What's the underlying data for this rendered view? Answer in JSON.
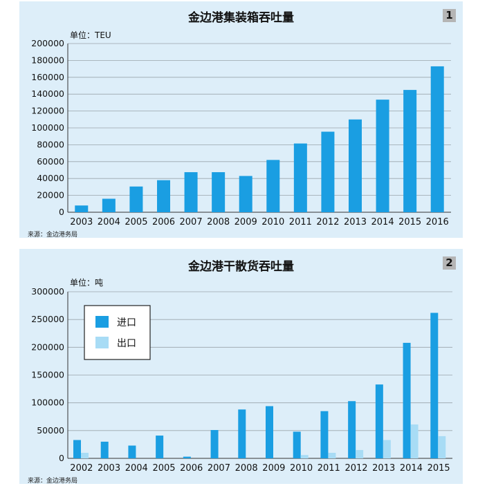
{
  "chart_data": [
    {
      "type": "bar",
      "title": "金边港集装箱吞吐量",
      "panel_number": "1",
      "unit_label": "单位：TEU",
      "source": "来源：金边港务局",
      "categories": [
        "2003",
        "2004",
        "2005",
        "2006",
        "2007",
        "2008",
        "2009",
        "2010",
        "2011",
        "2012",
        "2013",
        "2014",
        "2015",
        "2016"
      ],
      "values": [
        8000,
        16000,
        30500,
        38000,
        47500,
        47500,
        43000,
        62000,
        81500,
        95500,
        110000,
        133500,
        145000,
        173000
      ],
      "ylim": [
        0,
        200000
      ],
      "yticks": [
        0,
        20000,
        40000,
        60000,
        80000,
        100000,
        120000,
        140000,
        160000,
        180000,
        200000
      ],
      "grid": true,
      "colors": {
        "bar": "#1a9ee2"
      }
    },
    {
      "type": "bar",
      "title": "金边港干散货吞吐量",
      "panel_number": "2",
      "unit_label": "单位：吨",
      "source": "来源：金边港务局",
      "categories": [
        "2002",
        "2003",
        "2004",
        "2005",
        "2006",
        "2007",
        "2008",
        "2009",
        "2010",
        "2011",
        "2012",
        "2013",
        "2014",
        "2015"
      ],
      "series": [
        {
          "name": "进口",
          "color": "#1a9ee2",
          "values": [
            33000,
            30000,
            23000,
            41000,
            3000,
            51000,
            88000,
            94000,
            48000,
            85000,
            103000,
            133000,
            208000,
            262000
          ]
        },
        {
          "name": "出口",
          "color": "#a8dcf5",
          "values": [
            10000,
            0,
            0,
            0,
            0,
            0,
            0,
            0,
            6000,
            10000,
            15000,
            33000,
            61000,
            40000
          ]
        }
      ],
      "ylim": [
        0,
        300000
      ],
      "yticks": [
        0,
        50000,
        100000,
        150000,
        200000,
        250000,
        300000
      ],
      "grid": true,
      "legend_position": "top-left"
    }
  ]
}
